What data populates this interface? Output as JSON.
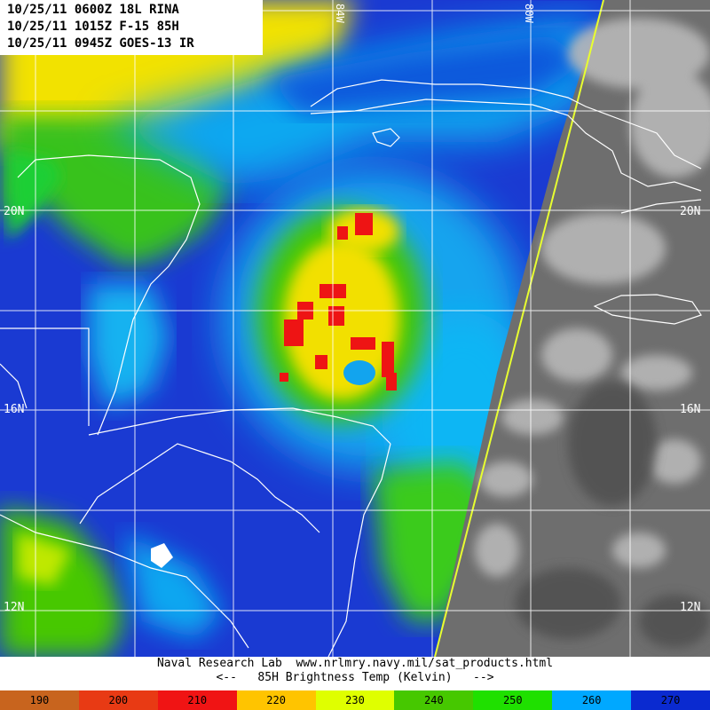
{
  "header": {
    "lines": [
      "10/25/11 0600Z 18L RINA",
      "10/25/11 1015Z F-15 85H",
      "10/25/11 0945Z GOES-13 IR"
    ]
  },
  "grid": {
    "lat_labels": [
      "20N",
      "16N",
      "12N"
    ],
    "lon_labels": [
      "84W",
      "80W"
    ]
  },
  "footer": {
    "line1": "Naval Research Lab  www.nrlmry.navy.mil/sat_products.html",
    "line2": "<--   85H Brightness Temp (Kelvin)   -->"
  },
  "colorbar": {
    "ticks": [
      "190",
      "200",
      "210",
      "220",
      "230",
      "240",
      "250",
      "260",
      "270"
    ],
    "colors": [
      "#c8641e",
      "#e83a14",
      "#f01414",
      "#ffc400",
      "#dfff00",
      "#46c800",
      "#1fe000",
      "#00a8ff",
      "#0a2ad0"
    ]
  }
}
